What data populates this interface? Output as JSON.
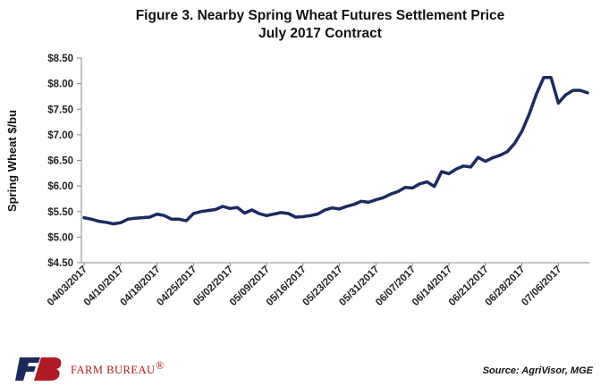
{
  "chart_data": {
    "type": "line",
    "title": "Figure 3. Nearby Spring Wheat Futures Settlement Price",
    "subtitle": "July 2017 Contract",
    "xlabel": "",
    "ylabel": "Spring Wheat $/bu",
    "ylim": [
      4.5,
      8.5
    ],
    "yticks": [
      "$4.50",
      "$5.00",
      "$5.50",
      "$6.00",
      "$6.50",
      "$7.00",
      "$7.50",
      "$8.00",
      "$8.50"
    ],
    "ytick_values": [
      4.5,
      5.0,
      5.5,
      6.0,
      6.5,
      7.0,
      7.5,
      8.0,
      8.5
    ],
    "xtick_labels": [
      "04/03/2017",
      "04/10/2017",
      "04/18/2017",
      "04/25/2017",
      "05/02/2017",
      "05/09/2017",
      "05/16/2017",
      "05/23/2017",
      "05/31/2017",
      "06/07/2017",
      "06/14/2017",
      "06/21/2017",
      "06/28/2017",
      "07/06/2017"
    ],
    "grid": false,
    "series": [
      {
        "color": "#1c2a5e",
        "values": [
          5.38,
          5.35,
          5.31,
          5.29,
          5.26,
          5.28,
          5.35,
          5.37,
          5.38,
          5.39,
          5.45,
          5.42,
          5.35,
          5.35,
          5.32,
          5.46,
          5.5,
          5.52,
          5.54,
          5.6,
          5.56,
          5.58,
          5.47,
          5.53,
          5.46,
          5.42,
          5.45,
          5.48,
          5.46,
          5.39,
          5.4,
          5.42,
          5.45,
          5.53,
          5.57,
          5.55,
          5.6,
          5.64,
          5.7,
          5.68,
          5.73,
          5.77,
          5.84,
          5.89,
          5.97,
          5.96,
          6.04,
          6.08,
          5.99,
          6.28,
          6.24,
          6.33,
          6.39,
          6.37,
          6.56,
          6.48,
          6.55,
          6.6,
          6.67,
          6.83,
          7.07,
          7.4,
          7.8,
          8.12,
          8.12,
          7.62,
          7.78,
          7.87,
          7.87,
          7.82
        ]
      }
    ]
  },
  "footer": {
    "logo_text": "FB",
    "brand_name": "FARM BUREAU",
    "brand_mark": "®",
    "source": "Source: AgriVisor, MGE"
  },
  "colors": {
    "line": "#1c2a5e",
    "brand_red": "#b01c23",
    "brand_navy": "#1b2a5b",
    "axis": "#888888"
  }
}
